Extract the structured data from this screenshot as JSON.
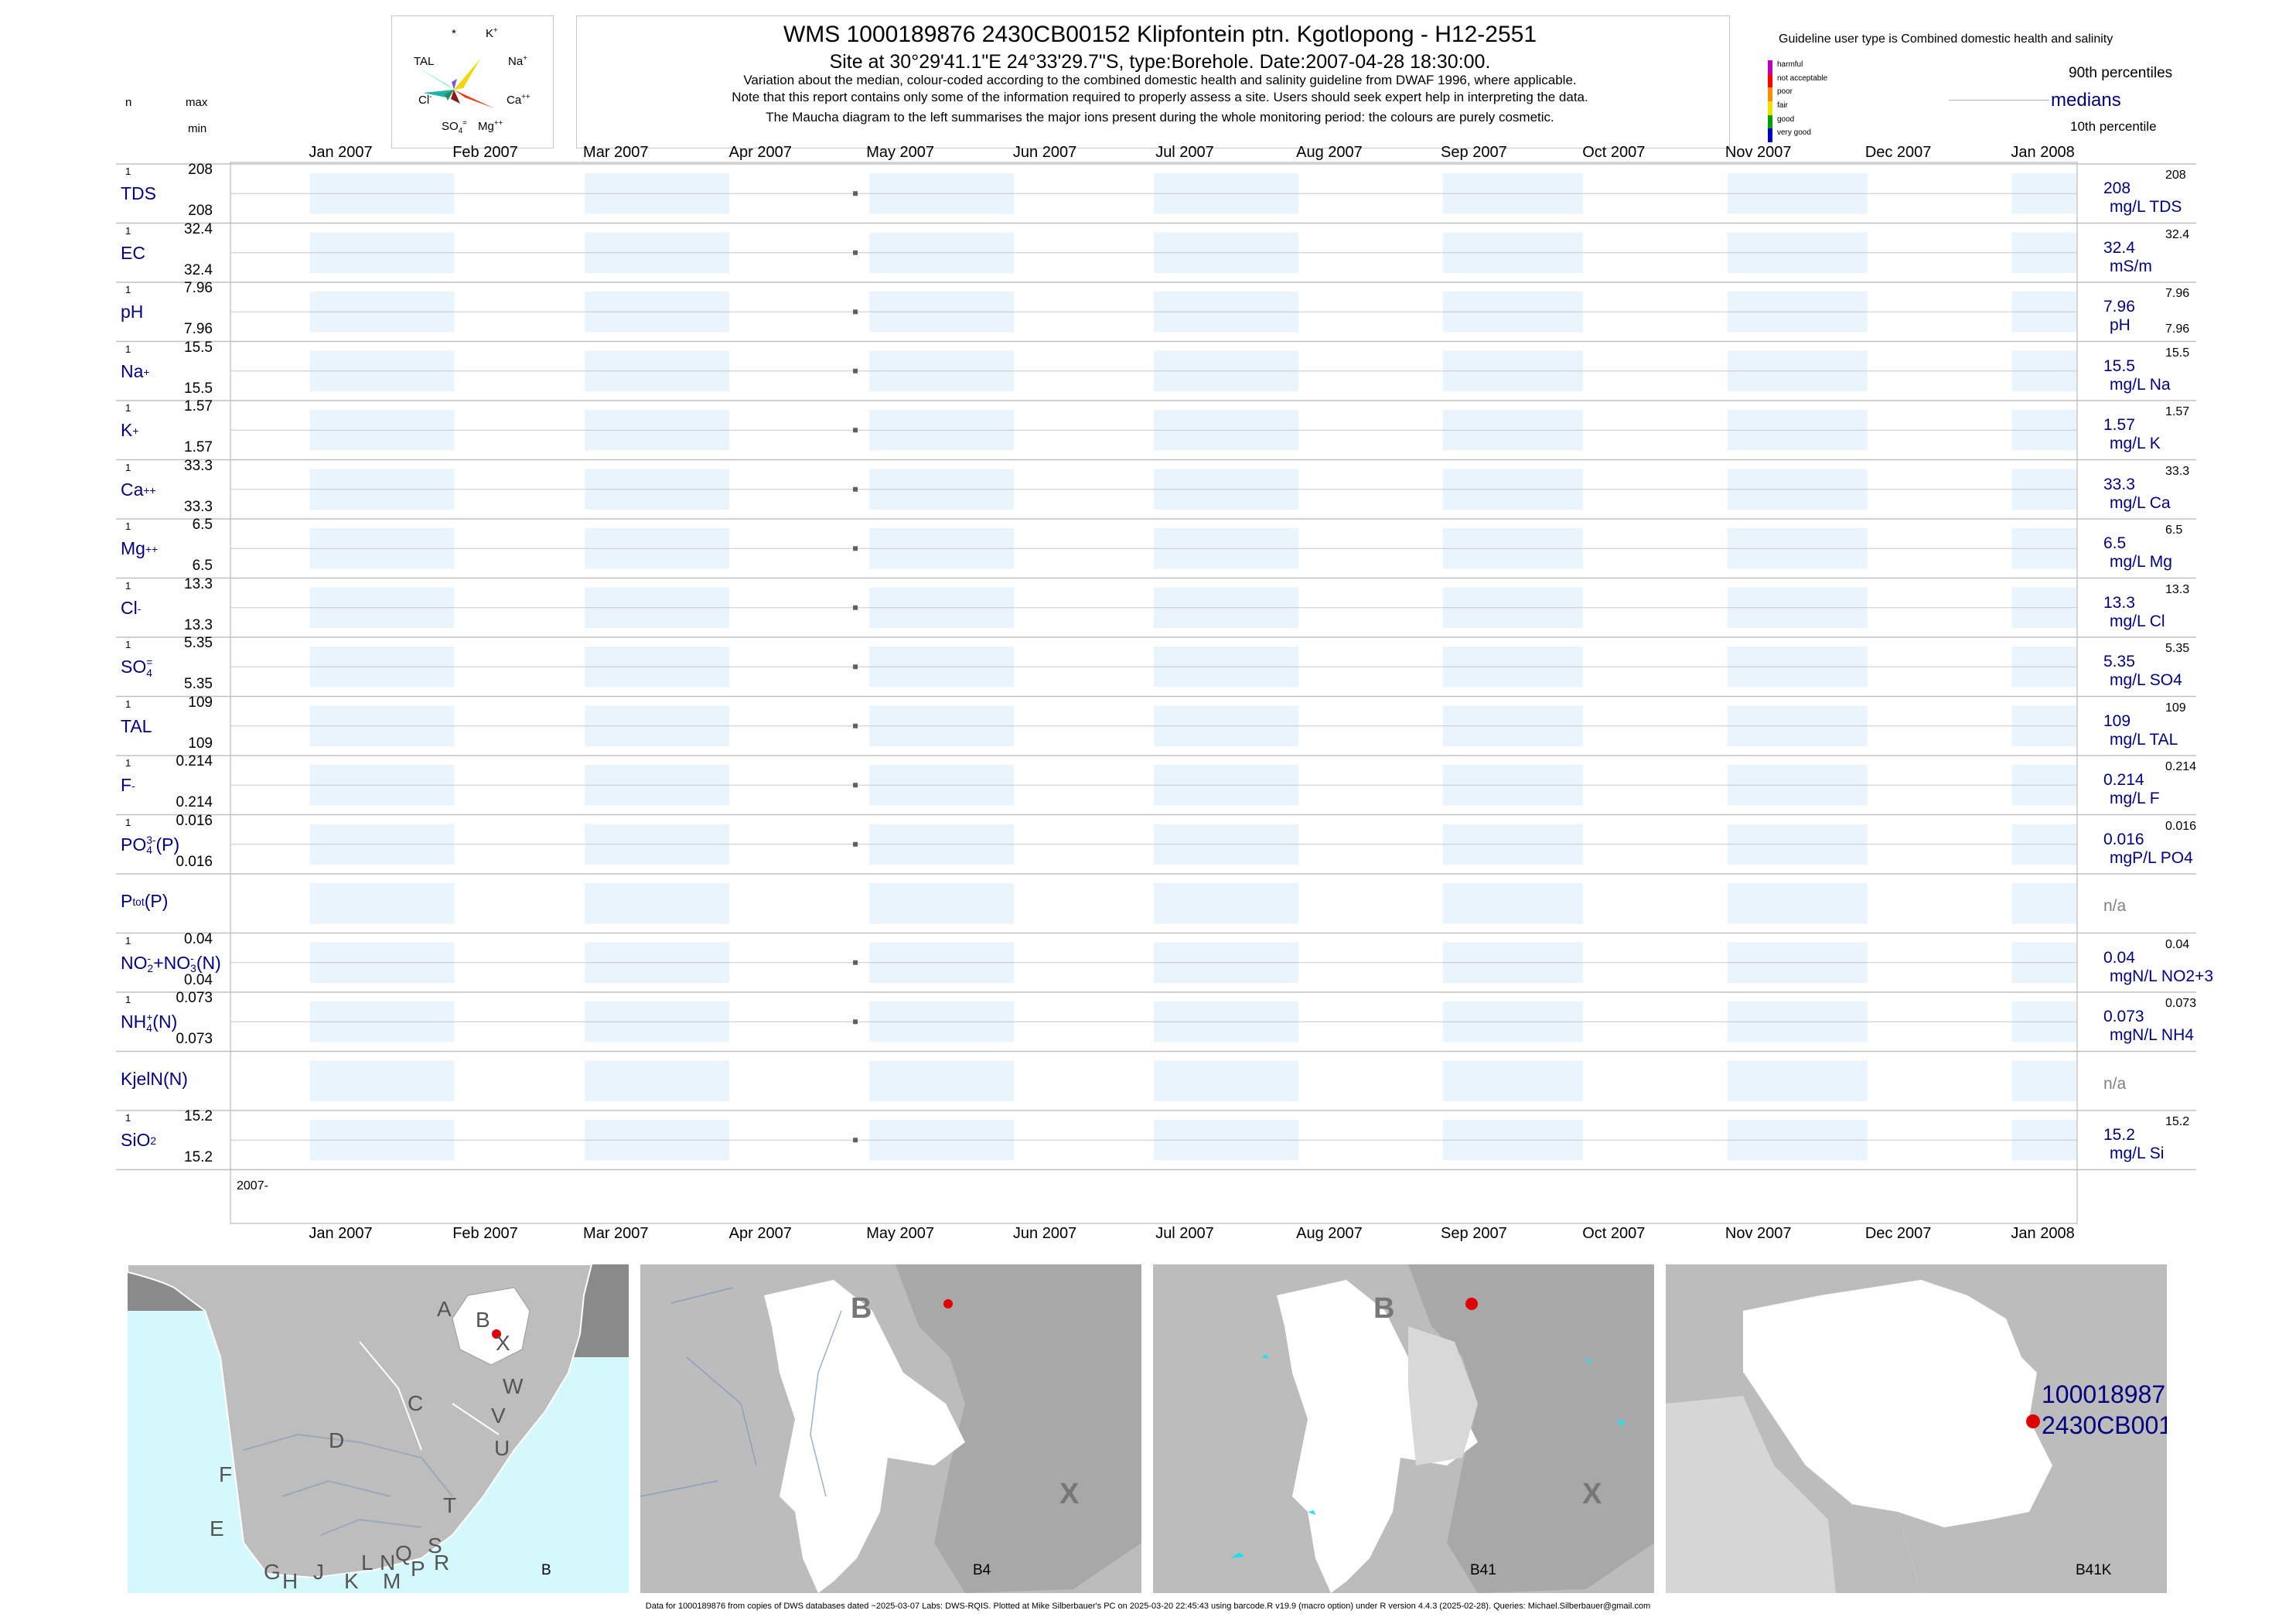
{
  "header": {
    "title": "WMS 1000189876 2430CB00152 Klipfontein ptn. Kgotlopong - H12-2551",
    "site": "Site at 30°29'41.1\"E 24°33'29.7\"S, type:Borehole. Date:2007-04-28 18:30:00.",
    "note1": "Variation about the median,  colour-coded according to the combined domestic health and salinity guideline from DWAF 1996, where applicable.",
    "note2": "Note that this report contains only some of the information required to properly assess a site. Users should seek expert help in interpreting the data.",
    "note3": "The Maucha diagram to the left summarises the major ions present during the whole monitoring period: the colours are purely cosmetic."
  },
  "maucha": {
    "star": "*",
    "k": "K",
    "k_sup": "+",
    "tal": "TAL",
    "na": "Na",
    "na_sup": "+",
    "cl": "Cl",
    "cl_sup": "-",
    "ca": "Ca",
    "ca_sup": "++",
    "so4": "SO",
    "so4_sub": "4",
    "so4_sup": "=",
    "mg": "Mg",
    "mg_sup": "++",
    "colors": {
      "k": "#7a5cd0",
      "na": "#f2d700",
      "ca": "#e8401c",
      "mg": "#8b1a1a",
      "so4": "#2e8b57",
      "cl": "#20b2aa",
      "tal": "#40e0e0"
    }
  },
  "legend_left": {
    "n": "n",
    "max": "max",
    "min": "min"
  },
  "legend_right": {
    "guideline": "Guideline user type is Combined domestic health and salinity",
    "levels": [
      {
        "label": "harmful",
        "color": "#c000c0"
      },
      {
        "label": "not acceptable",
        "color": "#ff0000"
      },
      {
        "label": "poor",
        "color": "#ff8c00"
      },
      {
        "label": "fair",
        "color": "#f0e000"
      },
      {
        "label": "good",
        "color": "#00a000"
      },
      {
        "label": "very good",
        "color": "#0000c0"
      }
    ],
    "p90": "90th percentiles",
    "medians": "medians",
    "p10": "10th percentile"
  },
  "chart_data": {
    "type": "scatter",
    "x_axis": {
      "ticks": [
        "Jan 2007",
        "Feb 2007",
        "Mar 2007",
        "Apr 2007",
        "May 2007",
        "Jun 2007",
        "Jul 2007",
        "Aug 2007",
        "Sep 2007",
        "Oct 2007",
        "Nov 2007",
        "Dec 2007",
        "Jan 2008"
      ],
      "range": [
        "2006-12-15",
        "2008-01-15"
      ],
      "year_label": "2007-"
    },
    "sample_date": "2007-04-28",
    "series": [
      {
        "name": "TDS",
        "label": "TDS",
        "n": "1",
        "max": "208",
        "min": "208",
        "median": "208",
        "unit": "mg/L TDS",
        "p90": "208",
        "p10": ""
      },
      {
        "name": "EC",
        "label": "EC",
        "n": "1",
        "max": "32.4",
        "min": "32.4",
        "median": "32.4",
        "unit": "mS/m",
        "p90": "32.4",
        "p10": ""
      },
      {
        "name": "pH",
        "label": "pH",
        "n": "1",
        "max": "7.96",
        "min": "7.96",
        "median": "7.96",
        "unit": "pH",
        "p90": "7.96",
        "p10": "7.96"
      },
      {
        "name": "Na",
        "label": "Na",
        "sup": "+",
        "n": "1",
        "max": "15.5",
        "min": "15.5",
        "median": "15.5",
        "unit": "mg/L Na",
        "p90": "15.5",
        "p10": ""
      },
      {
        "name": "K",
        "label": "K",
        "sup": "+",
        "n": "1",
        "max": "1.57",
        "min": "1.57",
        "median": "1.57",
        "unit": "mg/L K",
        "p90": "1.57",
        "p10": ""
      },
      {
        "name": "Ca",
        "label": "Ca",
        "sup": "++",
        "n": "1",
        "max": "33.3",
        "min": "33.3",
        "median": "33.3",
        "unit": "mg/L Ca",
        "p90": "33.3",
        "p10": ""
      },
      {
        "name": "Mg",
        "label": "Mg",
        "sup": "++",
        "n": "1",
        "max": "6.5",
        "min": "6.5",
        "median": "6.5",
        "unit": "mg/L Mg",
        "p90": "6.5",
        "p10": ""
      },
      {
        "name": "Cl",
        "label": "Cl",
        "sup": "-",
        "n": "1",
        "max": "13.3",
        "min": "13.3",
        "median": "13.3",
        "unit": "mg/L Cl",
        "p90": "13.3",
        "p10": ""
      },
      {
        "name": "SO4",
        "label": "SO",
        "sub": "4",
        "sup": "=",
        "n": "1",
        "max": "5.35",
        "min": "5.35",
        "median": "5.35",
        "unit": "mg/L SO4",
        "p90": "5.35",
        "p10": ""
      },
      {
        "name": "TAL",
        "label": "TAL",
        "n": "1",
        "max": "109",
        "min": "109",
        "median": "109",
        "unit": "mg/L TAL",
        "p90": "109",
        "p10": ""
      },
      {
        "name": "F",
        "label": "F",
        "sup": "-",
        "n": "1",
        "max": "0.214",
        "min": "0.214",
        "median": "0.214",
        "unit": "mg/L F",
        "p90": "0.214",
        "p10": ""
      },
      {
        "name": "PO4",
        "label": "PO",
        "sub": "4",
        "sup": "3-",
        "suffix": "(P)",
        "n": "1",
        "max": "0.016",
        "min": "0.016",
        "median": "0.016",
        "unit": "mgP/L PO4",
        "p90": "0.016",
        "p10": ""
      },
      {
        "name": "Ptot",
        "label": "P",
        "sub": "tot",
        "suffix": "(P)",
        "n": "",
        "max": "",
        "min": "",
        "median": "n/a",
        "unit": "",
        "p90": "",
        "p10": "",
        "empty": true
      },
      {
        "name": "NO2+NO3",
        "label": "NO",
        "sub": "2",
        "sup": "-",
        "label2": "+NO",
        "sub2": "3",
        "sup2": "-",
        "suffix": "(N)",
        "n": "1",
        "max": "0.04",
        "min": "0.04",
        "median": "0.04",
        "unit": "mgN/L NO2+3",
        "p90": "0.04",
        "p10": ""
      },
      {
        "name": "NH4",
        "label": "NH",
        "sub": "4",
        "sup": "+",
        "suffix": "(N)",
        "n": "1",
        "max": "0.073",
        "min": "0.073",
        "median": "0.073",
        "unit": "mgN/L NH4",
        "p90": "0.073",
        "p10": ""
      },
      {
        "name": "KjelN",
        "label": "KjelN(N)",
        "n": "",
        "max": "",
        "min": "",
        "median": "n/a",
        "unit": "",
        "p90": "",
        "p10": "",
        "empty": true
      },
      {
        "name": "SiO2",
        "label": "SiO",
        "sub": "2",
        "n": "1",
        "max": "15.2",
        "min": "15.2",
        "median": "15.2",
        "unit": "mg/L Si",
        "p90": "15.2",
        "p10": ""
      }
    ]
  },
  "maps": {
    "panel1": {
      "label": "B",
      "letters": [
        "A",
        "B",
        "X",
        "W",
        "C",
        "V",
        "U",
        "D",
        "F",
        "E",
        "T",
        "S",
        "R",
        "P",
        "M",
        "Q",
        "N",
        "L",
        "K",
        "J",
        "H",
        "G"
      ]
    },
    "panel2": {
      "label": "B4",
      "big1": "B",
      "big2": "X"
    },
    "panel3": {
      "label": "B41",
      "big1": "B",
      "big2": "X"
    },
    "panel4": {
      "label": "B41K",
      "site1": "100018987",
      "site2": "2430CB001"
    }
  },
  "footer": "Data for 1000189876 from copies of DWS databases dated ~2025-03-07 Labs: DWS-RQIS. Plotted at Mike Silberbauer's PC on 2025-03-20 22:45:43 using barcode.R v19.9 (macro option) under R version 4.4.3 (2025-02-28). Queries: Michael.Silberbauer@gmail.com"
}
